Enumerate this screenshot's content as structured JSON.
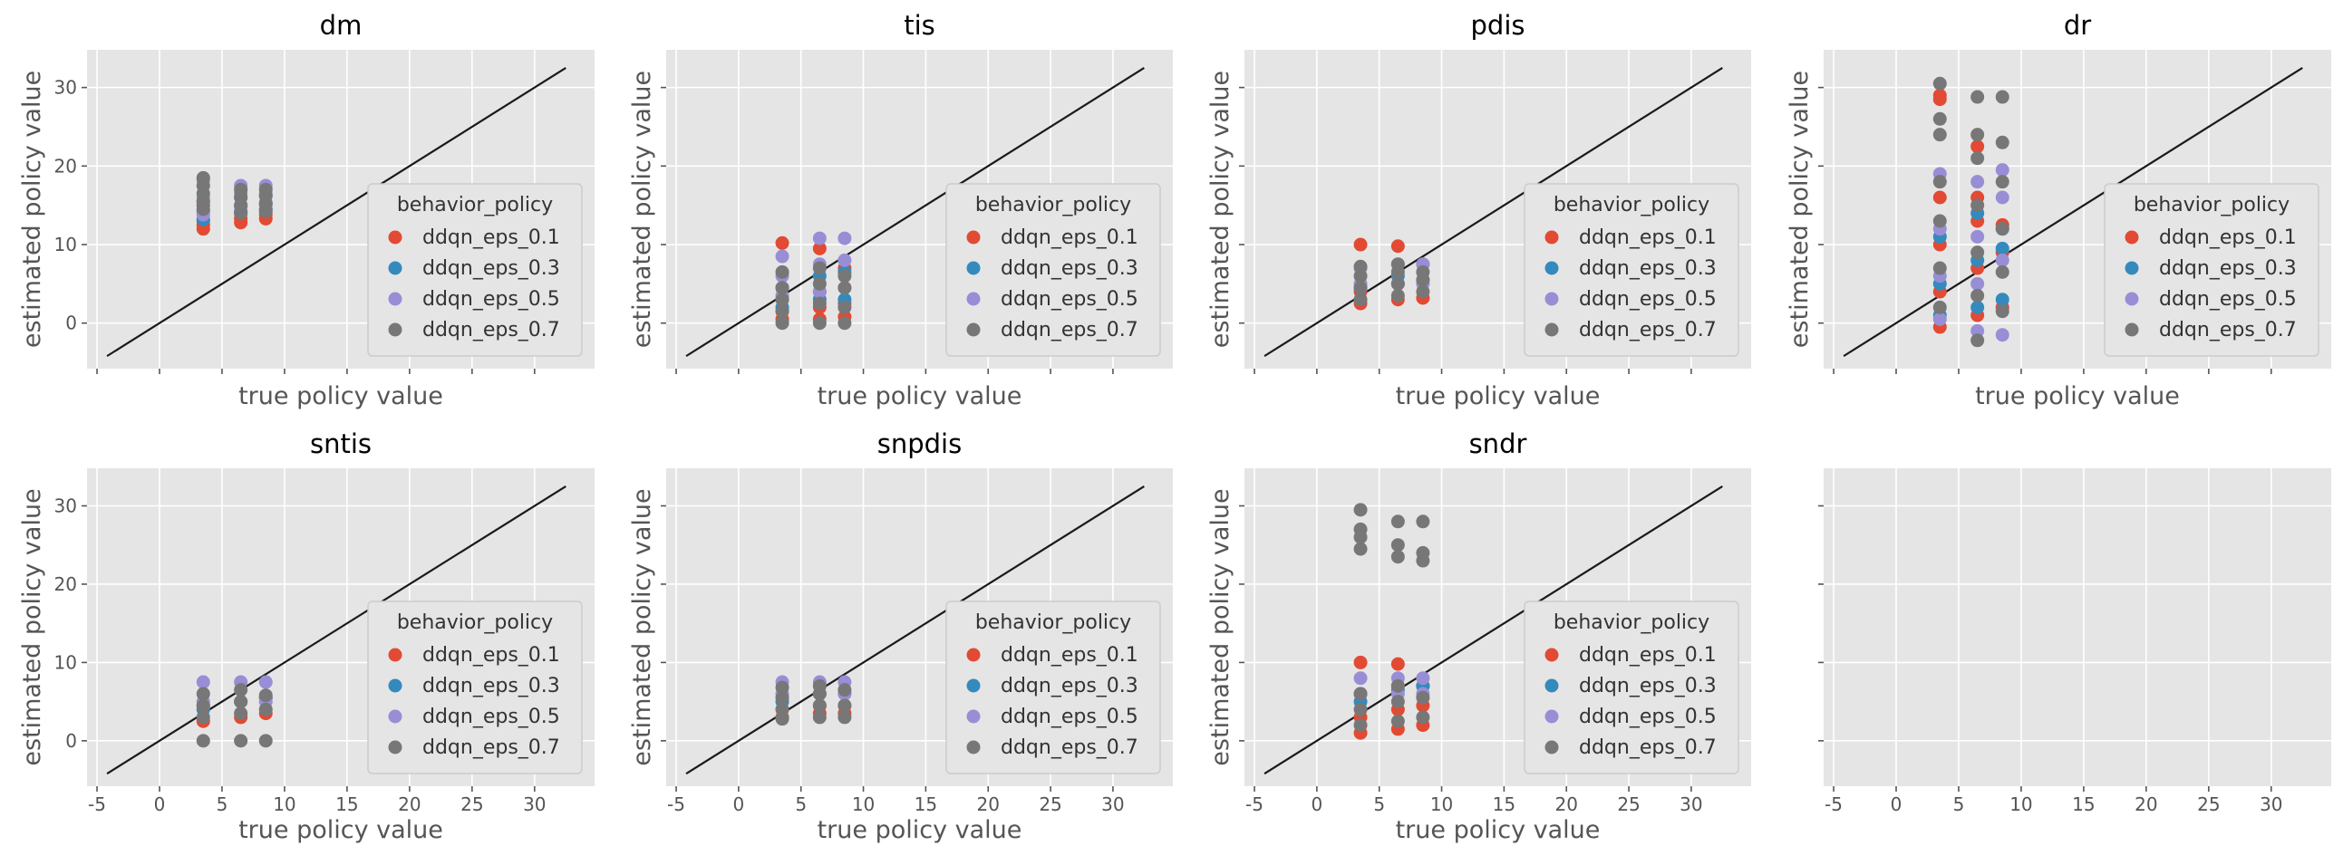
{
  "figure": {
    "colors": {
      "ddqn_eps_0.1": "#E24A33",
      "ddqn_eps_0.3": "#348ABD",
      "ddqn_eps_0.5": "#988ED5",
      "ddqn_eps_0.7": "#777777",
      "background": "#E5E5E5",
      "grid": "#FFFFFF",
      "reference_line": "#1A1A1A"
    },
    "layout": "2 rows x 4 columns, shared x and y axes",
    "style": "ggplot"
  },
  "chart_data": [
    {
      "title": "dm",
      "type": "scatter",
      "xlabel": "true policy value",
      "ylabel": "estimated policy value",
      "xlim": [
        -5.8,
        34.8
      ],
      "ylim": [
        -5.8,
        34.8
      ],
      "xticks": [
        -5,
        0,
        5,
        10,
        15,
        20,
        25,
        30
      ],
      "yticks": [
        0,
        10,
        20,
        30
      ],
      "grid": true,
      "reference_line": {
        "from": -4.2,
        "to": 32.5
      },
      "legend": {
        "title": "behavior_policy",
        "placement": "lower right",
        "entries": [
          "ddqn_eps_0.1",
          "ddqn_eps_0.3",
          "ddqn_eps_0.5",
          "ddqn_eps_0.7"
        ]
      },
      "series": [
        {
          "name": "ddqn_eps_0.1",
          "x": [
            3.5,
            3.5,
            3.5,
            3.5,
            6.5,
            6.5,
            6.5,
            8.5,
            8.5,
            8.5
          ],
          "y": [
            12.0,
            12.5,
            13.0,
            15.0,
            12.8,
            13.3,
            14.0,
            13.3,
            13.8,
            14.5
          ]
        },
        {
          "name": "ddqn_eps_0.3",
          "x": [
            3.5,
            3.5,
            3.5,
            6.5,
            6.5,
            6.5,
            8.5,
            8.5,
            8.5
          ],
          "y": [
            13.2,
            14.2,
            15.5,
            14.2,
            15.0,
            16.0,
            14.5,
            15.3,
            16.2
          ]
        },
        {
          "name": "ddqn_eps_0.5",
          "x": [
            3.5,
            3.5,
            3.5,
            6.5,
            6.5,
            6.5,
            8.5,
            8.5,
            8.5
          ],
          "y": [
            13.8,
            16.0,
            18.2,
            14.8,
            16.5,
            17.5,
            15.0,
            16.5,
            17.5
          ]
        },
        {
          "name": "ddqn_eps_0.7",
          "x": [
            3.5,
            3.5,
            3.5,
            3.5,
            3.5,
            6.5,
            6.5,
            6.5,
            6.5,
            8.5,
            8.5,
            8.5,
            8.5
          ],
          "y": [
            14.5,
            15.5,
            16.5,
            17.5,
            18.5,
            14.0,
            15.0,
            16.0,
            17.0,
            14.2,
            15.2,
            16.2,
            17.0
          ]
        }
      ]
    },
    {
      "title": "tis",
      "type": "scatter",
      "xlabel": "true policy value",
      "ylabel": "estimated policy value",
      "xlim": [
        -5.8,
        34.8
      ],
      "ylim": [
        -5.8,
        34.8
      ],
      "xticks": [
        -5,
        0,
        5,
        10,
        15,
        20,
        25,
        30
      ],
      "yticks": [
        0,
        10,
        20,
        30
      ],
      "grid": true,
      "reference_line": {
        "from": -4.2,
        "to": 32.5
      },
      "legend": {
        "title": "behavior_policy",
        "placement": "lower right",
        "entries": [
          "ddqn_eps_0.1",
          "ddqn_eps_0.3",
          "ddqn_eps_0.5",
          "ddqn_eps_0.7"
        ]
      },
      "series": [
        {
          "name": "ddqn_eps_0.1",
          "x": [
            3.5,
            3.5,
            3.5,
            3.5,
            6.5,
            6.5,
            6.5,
            6.5,
            8.5,
            8.5,
            8.5
          ],
          "y": [
            0.5,
            1.5,
            3.0,
            10.2,
            0.5,
            2.0,
            4.0,
            9.5,
            0.8,
            2.5,
            7.0
          ]
        },
        {
          "name": "ddqn_eps_0.3",
          "x": [
            3.5,
            3.5,
            6.5,
            6.5,
            8.5,
            8.5
          ],
          "y": [
            2.0,
            4.5,
            3.0,
            6.0,
            3.0,
            6.5
          ]
        },
        {
          "name": "ddqn_eps_0.5",
          "x": [
            3.5,
            3.5,
            3.5,
            6.5,
            6.5,
            6.5,
            8.5,
            8.5,
            8.5
          ],
          "y": [
            3.5,
            6.0,
            8.5,
            4.0,
            7.5,
            10.8,
            4.5,
            8.0,
            10.8
          ]
        },
        {
          "name": "ddqn_eps_0.7",
          "x": [
            3.5,
            3.5,
            3.5,
            3.5,
            3.5,
            6.5,
            6.5,
            6.5,
            6.5,
            8.5,
            8.5,
            8.5,
            8.5
          ],
          "y": [
            0.0,
            1.5,
            3.0,
            4.5,
            6.5,
            0.0,
            2.5,
            5.0,
            7.0,
            0.0,
            2.0,
            4.5,
            6.0
          ]
        }
      ]
    },
    {
      "title": "pdis",
      "type": "scatter",
      "xlabel": "true policy value",
      "ylabel": "estimated policy value",
      "xlim": [
        -5.8,
        34.8
      ],
      "ylim": [
        -5.8,
        34.8
      ],
      "xticks": [
        -5,
        0,
        5,
        10,
        15,
        20,
        25,
        30
      ],
      "yticks": [
        0,
        10,
        20,
        30
      ],
      "grid": true,
      "reference_line": {
        "from": -4.2,
        "to": 32.5
      },
      "legend": {
        "title": "behavior_policy",
        "placement": "lower right",
        "entries": [
          "ddqn_eps_0.1",
          "ddqn_eps_0.3",
          "ddqn_eps_0.5",
          "ddqn_eps_0.7"
        ]
      },
      "series": [
        {
          "name": "ddqn_eps_0.1",
          "x": [
            3.5,
            3.5,
            3.5,
            6.5,
            6.5,
            6.5,
            8.5,
            8.5
          ],
          "y": [
            2.5,
            4.0,
            10.0,
            3.0,
            5.0,
            9.8,
            3.2,
            5.5
          ]
        },
        {
          "name": "ddqn_eps_0.3",
          "x": [
            3.5,
            6.5,
            8.5
          ],
          "y": [
            4.5,
            6.0,
            7.5
          ]
        },
        {
          "name": "ddqn_eps_0.5",
          "x": [
            3.5,
            3.5,
            6.5,
            6.5,
            8.5,
            8.5
          ],
          "y": [
            5.0,
            7.0,
            5.0,
            7.5,
            5.0,
            7.5
          ]
        },
        {
          "name": "ddqn_eps_0.7",
          "x": [
            3.5,
            3.5,
            3.5,
            3.5,
            6.5,
            6.5,
            6.5,
            6.5,
            8.5,
            8.5,
            8.5
          ],
          "y": [
            3.0,
            4.5,
            6.0,
            7.2,
            3.5,
            5.0,
            6.5,
            7.5,
            4.0,
            5.5,
            6.5
          ]
        }
      ]
    },
    {
      "title": "dr",
      "type": "scatter",
      "xlabel": "true policy value",
      "ylabel": "estimated policy value",
      "xlim": [
        -5.8,
        34.8
      ],
      "ylim": [
        -5.8,
        34.8
      ],
      "xticks": [
        -5,
        0,
        5,
        10,
        15,
        20,
        25,
        30
      ],
      "yticks": [
        0,
        10,
        20,
        30
      ],
      "grid": true,
      "reference_line": {
        "from": -4.2,
        "to": 32.5
      },
      "legend": {
        "title": "behavior_policy",
        "placement": "lower right",
        "entries": [
          "ddqn_eps_0.1",
          "ddqn_eps_0.3",
          "ddqn_eps_0.5",
          "ddqn_eps_0.7"
        ]
      },
      "series": [
        {
          "name": "ddqn_eps_0.1",
          "x": [
            3.5,
            3.5,
            3.5,
            3.5,
            3.5,
            3.5,
            6.5,
            6.5,
            6.5,
            6.5,
            6.5,
            8.5,
            8.5,
            8.5
          ],
          "y": [
            -0.5,
            4.0,
            10.0,
            16.0,
            28.5,
            29.0,
            1.0,
            7.0,
            13.0,
            16.0,
            22.5,
            2.0,
            9.0,
            12.5
          ]
        },
        {
          "name": "ddqn_eps_0.3",
          "x": [
            3.5,
            3.5,
            3.5,
            6.5,
            6.5,
            6.5,
            8.5,
            8.5,
            8.5
          ],
          "y": [
            1.0,
            5.0,
            11.0,
            2.0,
            8.0,
            14.0,
            3.0,
            9.5,
            12.0
          ]
        },
        {
          "name": "ddqn_eps_0.5",
          "x": [
            3.5,
            3.5,
            3.5,
            3.5,
            6.5,
            6.5,
            6.5,
            6.5,
            8.5,
            8.5,
            8.5,
            8.5
          ],
          "y": [
            0.5,
            6.0,
            12.0,
            19.0,
            -1.0,
            5.0,
            11.0,
            18.0,
            -1.5,
            8.0,
            16.0,
            19.5
          ]
        },
        {
          "name": "ddqn_eps_0.7",
          "x": [
            3.5,
            3.5,
            3.5,
            3.5,
            3.5,
            3.5,
            3.5,
            6.5,
            6.5,
            6.5,
            6.5,
            6.5,
            6.5,
            6.5,
            8.5,
            8.5,
            8.5,
            8.5,
            8.5,
            8.5
          ],
          "y": [
            2.0,
            7.0,
            13.0,
            18.0,
            24.0,
            26.0,
            30.5,
            -2.2,
            3.5,
            9.0,
            15.0,
            21.0,
            24.0,
            28.8,
            1.5,
            6.5,
            12.0,
            18.0,
            23.0,
            28.8
          ]
        }
      ]
    },
    {
      "title": "sntis",
      "type": "scatter",
      "xlabel": "true policy value",
      "ylabel": "estimated policy value",
      "xlim": [
        -5.8,
        34.8
      ],
      "ylim": [
        -5.8,
        34.8
      ],
      "xticks": [
        -5,
        0,
        5,
        10,
        15,
        20,
        25,
        30
      ],
      "yticks": [
        0,
        10,
        20,
        30
      ],
      "grid": true,
      "reference_line": {
        "from": -4.2,
        "to": 32.5
      },
      "legend": {
        "title": "behavior_policy",
        "placement": "lower right",
        "entries": [
          "ddqn_eps_0.1",
          "ddqn_eps_0.3",
          "ddqn_eps_0.5",
          "ddqn_eps_0.7"
        ]
      },
      "series": [
        {
          "name": "ddqn_eps_0.1",
          "x": [
            3.5,
            3.5,
            6.5,
            6.5,
            8.5,
            8.5
          ],
          "y": [
            2.5,
            4.5,
            3.0,
            5.0,
            3.5,
            5.5
          ]
        },
        {
          "name": "ddqn_eps_0.3",
          "x": [
            3.5,
            6.5,
            8.5
          ],
          "y": [
            4.0,
            5.0,
            5.5
          ]
        },
        {
          "name": "ddqn_eps_0.5",
          "x": [
            3.5,
            3.5,
            6.5,
            6.5,
            8.5,
            8.5
          ],
          "y": [
            5.0,
            7.5,
            5.0,
            7.5,
            5.0,
            7.5
          ]
        },
        {
          "name": "ddqn_eps_0.7",
          "x": [
            3.5,
            3.5,
            3.5,
            3.5,
            6.5,
            6.5,
            6.5,
            6.5,
            8.5,
            8.5,
            8.5
          ],
          "y": [
            0.0,
            3.0,
            4.5,
            6.0,
            0.0,
            3.5,
            5.0,
            6.5,
            0.0,
            4.0,
            5.8
          ]
        }
      ]
    },
    {
      "title": "snpdis",
      "type": "scatter",
      "xlabel": "true policy value",
      "ylabel": "estimated policy value",
      "xlim": [
        -5.8,
        34.8
      ],
      "ylim": [
        -5.8,
        34.8
      ],
      "xticks": [
        -5,
        0,
        5,
        10,
        15,
        20,
        25,
        30
      ],
      "yticks": [
        0,
        10,
        20,
        30
      ],
      "grid": true,
      "reference_line": {
        "from": -4.2,
        "to": 32.5
      },
      "legend": {
        "title": "behavior_policy",
        "placement": "lower right",
        "entries": [
          "ddqn_eps_0.1",
          "ddqn_eps_0.3",
          "ddqn_eps_0.5",
          "ddqn_eps_0.7"
        ]
      },
      "series": [
        {
          "name": "ddqn_eps_0.1",
          "x": [
            3.5,
            3.5,
            6.5,
            6.5,
            8.5,
            8.5
          ],
          "y": [
            3.0,
            4.0,
            3.5,
            4.5,
            3.5,
            4.5
          ]
        },
        {
          "name": "ddqn_eps_0.3",
          "x": [
            3.5,
            6.5,
            8.5
          ],
          "y": [
            5.0,
            6.0,
            6.0
          ]
        },
        {
          "name": "ddqn_eps_0.5",
          "x": [
            3.5,
            3.5,
            6.5,
            6.5,
            8.5,
            8.5
          ],
          "y": [
            6.0,
            7.5,
            6.0,
            7.5,
            6.0,
            7.5
          ]
        },
        {
          "name": "ddqn_eps_0.7",
          "x": [
            3.5,
            3.5,
            3.5,
            3.5,
            6.5,
            6.5,
            6.5,
            6.5,
            8.5,
            8.5,
            8.5
          ],
          "y": [
            2.8,
            4.0,
            5.5,
            6.8,
            3.0,
            4.5,
            6.0,
            7.0,
            3.0,
            4.5,
            6.5
          ]
        }
      ]
    },
    {
      "title": "sndr",
      "type": "scatter",
      "xlabel": "true policy value",
      "ylabel": "estimated policy value",
      "xlim": [
        -5.8,
        34.8
      ],
      "ylim": [
        -5.8,
        34.8
      ],
      "xticks": [
        -5,
        0,
        5,
        10,
        15,
        20,
        25,
        30
      ],
      "yticks": [
        0,
        10,
        20,
        30
      ],
      "grid": true,
      "reference_line": {
        "from": -4.2,
        "to": 32.5
      },
      "legend": {
        "title": "behavior_policy",
        "placement": "lower right",
        "entries": [
          "ddqn_eps_0.1",
          "ddqn_eps_0.3",
          "ddqn_eps_0.5",
          "ddqn_eps_0.7"
        ]
      },
      "series": [
        {
          "name": "ddqn_eps_0.1",
          "x": [
            3.5,
            3.5,
            3.5,
            3.5,
            6.5,
            6.5,
            6.5,
            6.5,
            8.5,
            8.5,
            8.5
          ],
          "y": [
            1.0,
            3.0,
            6.0,
            10.0,
            1.5,
            4.0,
            7.0,
            9.8,
            2.0,
            4.5,
            7.0
          ]
        },
        {
          "name": "ddqn_eps_0.3",
          "x": [
            3.5,
            6.5,
            8.5
          ],
          "y": [
            5.0,
            6.5,
            7.0
          ]
        },
        {
          "name": "ddqn_eps_0.5",
          "x": [
            3.5,
            3.5,
            6.5,
            6.5,
            8.5,
            8.5
          ],
          "y": [
            6.0,
            8.0,
            6.0,
            8.0,
            6.0,
            8.0
          ]
        },
        {
          "name": "ddqn_eps_0.7",
          "x": [
            3.5,
            3.5,
            3.5,
            3.5,
            3.5,
            3.5,
            3.5,
            6.5,
            6.5,
            6.5,
            6.5,
            6.5,
            6.5,
            8.5,
            8.5,
            8.5,
            8.5,
            8.5
          ],
          "y": [
            2.0,
            4.0,
            6.0,
            24.5,
            26.0,
            27.0,
            29.5,
            2.5,
            5.0,
            7.0,
            23.5,
            25.0,
            28.0,
            3.0,
            5.5,
            23.0,
            24.0,
            28.0
          ]
        }
      ]
    },
    {
      "title": "",
      "type": "scatter",
      "empty": true,
      "xlim": [
        -5.8,
        34.8
      ],
      "ylim": [
        -5.8,
        34.8
      ],
      "xticks": [
        -5,
        0,
        5,
        10,
        15,
        20,
        25,
        30
      ],
      "yticks": [
        0,
        10,
        20,
        30
      ],
      "grid": true,
      "series": []
    }
  ]
}
